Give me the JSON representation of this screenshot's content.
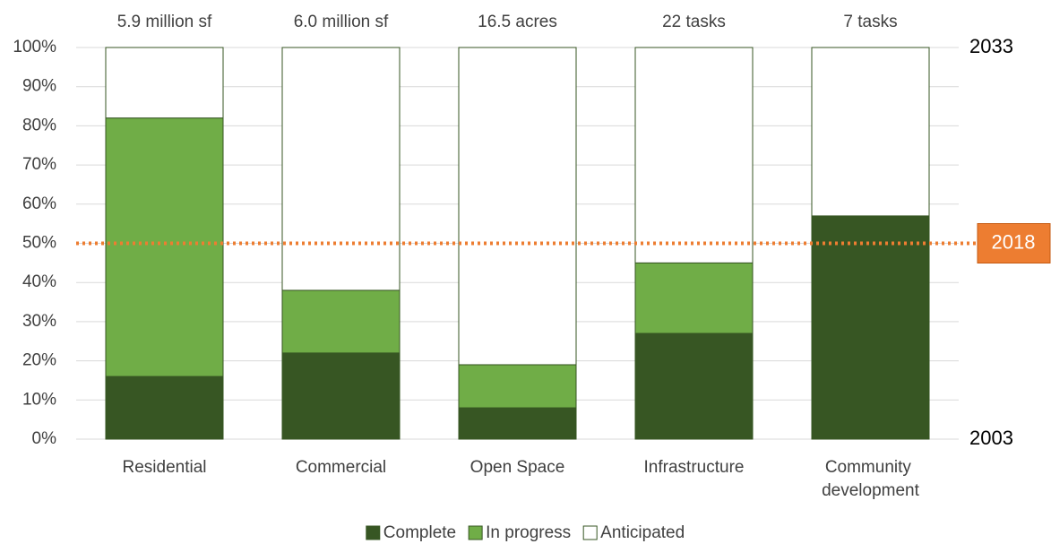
{
  "chart_data": {
    "type": "stacked_bar",
    "categories": [
      "Residential",
      "Commercial",
      "Open Space",
      "Infrastructure",
      "Community development"
    ],
    "top_labels": [
      "5.9 million sf",
      "6.0 million sf",
      "16.5 acres",
      "22 tasks",
      "7 tasks"
    ],
    "series": [
      {
        "name": "Complete",
        "color": "#375623",
        "values": [
          16,
          22,
          8,
          27,
          57
        ]
      },
      {
        "name": "In progress",
        "color": "#70ad47",
        "values": [
          66,
          16,
          11,
          18,
          0
        ]
      },
      {
        "name": "Anticipated",
        "color": "#ffffff",
        "values": [
          18,
          62,
          81,
          55,
          43
        ]
      }
    ],
    "ylim": [
      0,
      100
    ],
    "yticks": [
      {
        "value": 0,
        "label": "0%"
      },
      {
        "value": 10,
        "label": "10%"
      },
      {
        "value": 20,
        "label": "20%"
      },
      {
        "value": 30,
        "label": "30%"
      },
      {
        "value": 40,
        "label": "40%"
      },
      {
        "value": 50,
        "label": "50%"
      },
      {
        "value": 60,
        "label": "60%"
      },
      {
        "value": 70,
        "label": "70%"
      },
      {
        "value": 80,
        "label": "80%"
      },
      {
        "value": 90,
        "label": "90%"
      },
      {
        "value": 100,
        "label": "100%"
      }
    ],
    "grid": true,
    "reference_line": {
      "value": 50,
      "label": "2018",
      "color": "#ed7d31"
    },
    "right_labels": {
      "top": "2033",
      "bottom": "2003"
    },
    "bar_outline": "#375623",
    "legend": "bottom"
  }
}
